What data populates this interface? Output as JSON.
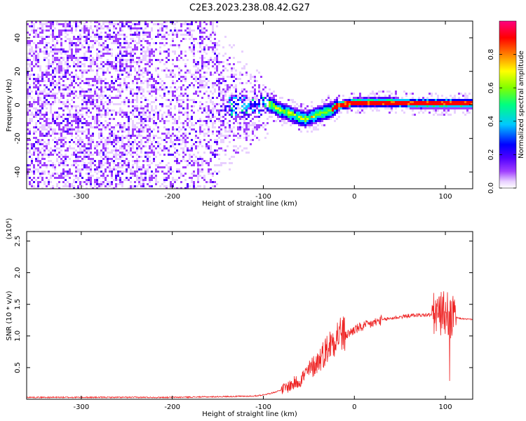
{
  "figure_title": "C2E3.2023.238.08.42.G27",
  "chart_data": [
    {
      "type": "heatmap",
      "xlabel": "Height of straight line (km)",
      "ylabel": "Frequency (Hz)",
      "xlim": [
        -360,
        130
      ],
      "ylim": [
        -50,
        50
      ],
      "xticks": [
        -300,
        -200,
        -100,
        0,
        100
      ],
      "yticks": [
        -40,
        -20,
        0,
        20,
        40
      ],
      "colorbar": {
        "label": "Normalized spectral amplitude",
        "range": [
          0.0,
          1.0
        ],
        "ticks": [
          0.0,
          0.2,
          0.4,
          0.6,
          0.8
        ],
        "colormap": [
          "#ffffff",
          "#e8d0ff",
          "#a040ff",
          "#5000ff",
          "#0000ff",
          "#00c8ff",
          "#00ff80",
          "#80ff00",
          "#ffff00",
          "#ff8000",
          "#ff0000",
          "#ff0080"
        ]
      },
      "ridge": {
        "x": [
          -95,
          -90,
          -85,
          -80,
          -75,
          -70,
          -65,
          -60,
          -55,
          -50,
          -45,
          -40,
          -35,
          -30,
          -25,
          -20,
          -10,
          0,
          20,
          40,
          60,
          80,
          100,
          120,
          130
        ],
        "y": [
          1,
          0,
          -2,
          -3,
          -4,
          -5,
          -6,
          -7,
          -8,
          -7,
          -6,
          -5,
          -4,
          -3,
          -2,
          0,
          1,
          2,
          2,
          2,
          1.5,
          1.5,
          1.5,
          1.5,
          1.5
        ]
      }
    },
    {
      "type": "line",
      "xlabel": "Height of straight line (km)",
      "ylabel": "SNR (10 * v/v)",
      "y_multiplier": "(x10⁴)",
      "xlim": [
        -360,
        130
      ],
      "ylim": [
        0,
        2.65
      ],
      "xticks": [
        -300,
        -200,
        -100,
        0,
        100
      ],
      "yticks": [
        0.5,
        1.0,
        1.5,
        2.0,
        2.5
      ],
      "ytick_labels": [
        "0.5",
        "1.0",
        "1.5",
        "2.0",
        "2.5"
      ],
      "color": "#ee2222",
      "series": [
        {
          "x": [
            -360,
            -300,
            -200,
            -150,
            -110,
            -100,
            -90,
            -80,
            -70,
            -60,
            -50,
            -40,
            -35,
            -30,
            -25,
            -20,
            -15,
            -10,
            -5,
            0,
            10,
            20,
            30,
            40,
            50,
            60,
            70,
            80,
            90,
            95,
            100,
            103,
            106,
            108,
            110,
            115,
            120,
            130
          ],
          "y": [
            0.03,
            0.03,
            0.03,
            0.04,
            0.05,
            0.07,
            0.1,
            0.15,
            0.22,
            0.3,
            0.45,
            0.6,
            0.7,
            0.8,
            0.9,
            1.0,
            1.05,
            1.0,
            1.05,
            1.1,
            1.15,
            1.2,
            1.25,
            1.28,
            1.3,
            1.32,
            1.33,
            1.33,
            1.34,
            1.35,
            1.38,
            1.35,
            1.2,
            1.3,
            1.3,
            1.28,
            1.27,
            1.26
          ]
        }
      ]
    }
  ]
}
